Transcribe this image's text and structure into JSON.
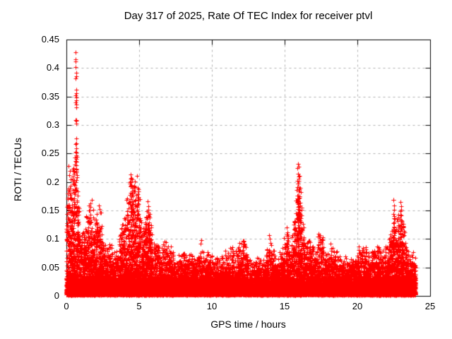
{
  "header": {
    "title": "Day 317 of 2025, Rate Of TEC Index for receiver ptvl"
  },
  "chart_data": {
    "type": "scatter",
    "title": "Day 317 of 2025, Rate Of TEC Index for receiver ptvl",
    "xlabel": "GPS time / hours",
    "ylabel": "ROTI / TECUs",
    "xlim": [
      0,
      25
    ],
    "ylim": [
      0,
      0.45
    ],
    "x_ticks": [
      {
        "v": 0,
        "label": "0"
      },
      {
        "v": 5,
        "label": "5"
      },
      {
        "v": 10,
        "label": "10"
      },
      {
        "v": 15,
        "label": "15"
      },
      {
        "v": 20,
        "label": "20"
      },
      {
        "v": 25,
        "label": "25"
      }
    ],
    "y_ticks": [
      {
        "v": 0,
        "label": "0"
      },
      {
        "v": 0.05,
        "label": "0.05"
      },
      {
        "v": 0.1,
        "label": "0.1"
      },
      {
        "v": 0.15,
        "label": "0.15"
      },
      {
        "v": 0.2,
        "label": "0.2"
      },
      {
        "v": 0.25,
        "label": "0.25"
      },
      {
        "v": 0.3,
        "label": "0.3"
      },
      {
        "v": 0.35,
        "label": "0.35"
      },
      {
        "v": 0.4,
        "label": "0.4"
      },
      {
        "v": 0.45,
        "label": "0.45"
      }
    ],
    "grid": true,
    "grid_color": "#b0b0b0",
    "marker": "plus",
    "marker_color": "#ff0000",
    "data_time_range_hours": [
      0,
      24
    ],
    "baseline_band_max_tecus": 0.05,
    "envelope": [
      [
        0,
        0.13
      ],
      [
        0.1,
        0.17
      ],
      [
        0.2,
        0.21
      ],
      [
        0.35,
        0.18
      ],
      [
        0.5,
        0.22
      ],
      [
        0.6,
        0.3
      ],
      [
        0.65,
        0.36
      ],
      [
        0.7,
        0.26
      ],
      [
        0.8,
        0.18
      ],
      [
        0.9,
        0.13
      ],
      [
        1.0,
        0.1
      ],
      [
        1.1,
        0.095
      ],
      [
        1.2,
        0.11
      ],
      [
        1.35,
        0.125
      ],
      [
        1.5,
        0.135
      ],
      [
        1.65,
        0.16
      ],
      [
        1.8,
        0.14
      ],
      [
        1.95,
        0.125
      ],
      [
        2.1,
        0.13
      ],
      [
        2.3,
        0.15
      ],
      [
        2.45,
        0.11
      ],
      [
        2.6,
        0.09
      ],
      [
        2.8,
        0.078
      ],
      [
        3.0,
        0.082
      ],
      [
        3.2,
        0.072
      ],
      [
        3.4,
        0.075
      ],
      [
        3.6,
        0.09
      ],
      [
        3.8,
        0.115
      ],
      [
        4.0,
        0.13
      ],
      [
        4.15,
        0.165
      ],
      [
        4.3,
        0.185
      ],
      [
        4.45,
        0.21
      ],
      [
        4.6,
        0.19
      ],
      [
        4.75,
        0.17
      ],
      [
        4.9,
        0.185
      ],
      [
        5.05,
        0.15
      ],
      [
        5.2,
        0.12
      ],
      [
        5.35,
        0.11
      ],
      [
        5.5,
        0.155
      ],
      [
        5.65,
        0.16
      ],
      [
        5.8,
        0.11
      ],
      [
        6.0,
        0.085
      ],
      [
        6.2,
        0.1
      ],
      [
        6.4,
        0.085
      ],
      [
        6.6,
        0.075
      ],
      [
        6.8,
        0.095
      ],
      [
        7.0,
        0.085
      ],
      [
        7.25,
        0.07
      ],
      [
        7.5,
        0.06
      ],
      [
        7.75,
        0.065
      ],
      [
        8.0,
        0.065
      ],
      [
        8.15,
        0.075
      ],
      [
        8.35,
        0.065
      ],
      [
        8.6,
        0.072
      ],
      [
        8.8,
        0.06
      ],
      [
        9.0,
        0.065
      ],
      [
        9.25,
        0.085
      ],
      [
        9.5,
        0.062
      ],
      [
        9.75,
        0.075
      ],
      [
        10.0,
        0.065
      ],
      [
        10.25,
        0.06
      ],
      [
        10.5,
        0.058
      ],
      [
        10.75,
        0.062
      ],
      [
        11.0,
        0.07
      ],
      [
        11.2,
        0.065
      ],
      [
        11.45,
        0.09
      ],
      [
        11.6,
        0.07
      ],
      [
        11.8,
        0.08
      ],
      [
        12.0,
        0.088
      ],
      [
        12.2,
        0.095
      ],
      [
        12.4,
        0.07
      ],
      [
        12.6,
        0.058
      ],
      [
        12.8,
        0.056
      ],
      [
        13.0,
        0.065
      ],
      [
        13.2,
        0.06
      ],
      [
        13.5,
        0.055
      ],
      [
        13.7,
        0.07
      ],
      [
        13.95,
        0.1
      ],
      [
        14.15,
        0.08
      ],
      [
        14.4,
        0.06
      ],
      [
        14.6,
        0.065
      ],
      [
        14.8,
        0.08
      ],
      [
        15.0,
        0.09
      ],
      [
        15.2,
        0.105
      ],
      [
        15.4,
        0.085
      ],
      [
        15.6,
        0.1
      ],
      [
        15.8,
        0.17
      ],
      [
        15.95,
        0.23
      ],
      [
        16.1,
        0.18
      ],
      [
        16.25,
        0.12
      ],
      [
        16.4,
        0.1
      ],
      [
        16.6,
        0.09
      ],
      [
        16.8,
        0.085
      ],
      [
        17.0,
        0.08
      ],
      [
        17.2,
        0.09
      ],
      [
        17.4,
        0.1
      ],
      [
        17.6,
        0.092
      ],
      [
        17.8,
        0.075
      ],
      [
        18.0,
        0.065
      ],
      [
        18.2,
        0.088
      ],
      [
        18.4,
        0.075
      ],
      [
        18.6,
        0.07
      ],
      [
        18.8,
        0.062
      ],
      [
        19.0,
        0.058
      ],
      [
        19.25,
        0.062
      ],
      [
        19.5,
        0.066
      ],
      [
        19.75,
        0.06
      ],
      [
        20.0,
        0.075
      ],
      [
        20.2,
        0.082
      ],
      [
        20.4,
        0.078
      ],
      [
        20.6,
        0.085
      ],
      [
        20.8,
        0.065
      ],
      [
        21.0,
        0.068
      ],
      [
        21.2,
        0.072
      ],
      [
        21.4,
        0.075
      ],
      [
        21.6,
        0.078
      ],
      [
        21.8,
        0.072
      ],
      [
        22.0,
        0.08
      ],
      [
        22.2,
        0.09
      ],
      [
        22.35,
        0.11
      ],
      [
        22.5,
        0.16
      ],
      [
        22.65,
        0.115
      ],
      [
        22.8,
        0.125
      ],
      [
        22.95,
        0.16
      ],
      [
        23.1,
        0.14
      ],
      [
        23.25,
        0.1
      ],
      [
        23.4,
        0.08
      ],
      [
        23.55,
        0.07
      ],
      [
        23.7,
        0.065
      ],
      [
        23.85,
        0.075
      ],
      [
        24.0,
        0.065
      ]
    ],
    "outliers": [
      [
        0.63,
        0.428
      ],
      [
        0.645,
        0.415
      ],
      [
        0.655,
        0.412
      ],
      [
        0.65,
        0.402
      ],
      [
        0.66,
        0.392
      ],
      [
        0.665,
        0.386
      ],
      [
        0.652,
        0.382
      ],
      [
        0.658,
        0.362
      ],
      [
        0.668,
        0.356
      ],
      [
        0.648,
        0.352
      ],
      [
        0.66,
        0.348
      ],
      [
        0.67,
        0.344
      ],
      [
        0.655,
        0.34
      ],
      [
        0.663,
        0.336
      ],
      [
        0.672,
        0.331
      ],
      [
        0.66,
        0.303
      ],
      [
        0.676,
        0.276
      ],
      [
        0.662,
        0.268
      ],
      [
        0.671,
        0.259
      ],
      [
        0.68,
        0.252
      ],
      [
        0.668,
        0.247
      ],
      [
        0.686,
        0.241
      ],
      [
        0.676,
        0.236
      ],
      [
        0.695,
        0.229
      ],
      [
        0.685,
        0.223
      ],
      [
        0.7,
        0.217
      ],
      [
        0.71,
        0.212
      ],
      [
        0.15,
        0.228
      ],
      [
        0.22,
        0.22
      ],
      [
        0.18,
        0.212
      ],
      [
        0.3,
        0.205
      ],
      [
        0.42,
        0.21
      ],
      [
        0.48,
        0.225
      ],
      [
        0.52,
        0.218
      ],
      [
        1.63,
        0.163
      ],
      [
        1.66,
        0.156
      ],
      [
        1.61,
        0.15
      ],
      [
        2.28,
        0.152
      ],
      [
        2.32,
        0.146
      ],
      [
        4.44,
        0.213
      ],
      [
        4.47,
        0.207
      ],
      [
        4.42,
        0.2
      ],
      [
        4.46,
        0.195
      ],
      [
        4.5,
        0.19
      ],
      [
        4.9,
        0.19
      ],
      [
        4.93,
        0.184
      ],
      [
        4.88,
        0.178
      ],
      [
        5.58,
        0.166
      ],
      [
        5.62,
        0.158
      ],
      [
        12.18,
        0.096
      ],
      [
        12.22,
        0.091
      ],
      [
        13.93,
        0.106
      ],
      [
        13.96,
        0.1
      ],
      [
        15.18,
        0.108
      ],
      [
        15.22,
        0.102
      ],
      [
        15.93,
        0.232
      ],
      [
        15.95,
        0.227
      ],
      [
        15.94,
        0.214
      ],
      [
        15.96,
        0.21
      ],
      [
        15.92,
        0.197
      ],
      [
        15.95,
        0.191
      ],
      [
        15.97,
        0.184
      ],
      [
        15.93,
        0.176
      ],
      [
        15.96,
        0.171
      ],
      [
        15.91,
        0.166
      ],
      [
        15.94,
        0.161
      ],
      [
        15.97,
        0.157
      ],
      [
        15.92,
        0.152
      ],
      [
        15.95,
        0.148
      ],
      [
        15.93,
        0.144
      ],
      [
        15.98,
        0.139
      ],
      [
        15.91,
        0.134
      ],
      [
        15.94,
        0.129
      ],
      [
        15.96,
        0.124
      ],
      [
        16.0,
        0.119
      ],
      [
        16.04,
        0.112
      ],
      [
        15.88,
        0.108
      ],
      [
        17.38,
        0.104
      ],
      [
        17.42,
        0.098
      ],
      [
        20.58,
        0.086
      ],
      [
        22.47,
        0.168
      ],
      [
        22.5,
        0.159
      ],
      [
        22.52,
        0.151
      ],
      [
        22.48,
        0.144
      ],
      [
        22.51,
        0.136
      ],
      [
        22.49,
        0.128
      ],
      [
        22.53,
        0.121
      ],
      [
        22.47,
        0.114
      ],
      [
        22.52,
        0.107
      ],
      [
        22.78,
        0.131
      ],
      [
        22.82,
        0.124
      ],
      [
        22.96,
        0.165
      ],
      [
        23.0,
        0.157
      ],
      [
        22.98,
        0.149
      ],
      [
        23.02,
        0.141
      ],
      [
        22.99,
        0.133
      ],
      [
        23.01,
        0.125
      ],
      [
        23.04,
        0.117
      ],
      [
        22.97,
        0.11
      ],
      [
        23.0,
        0.103
      ]
    ]
  }
}
